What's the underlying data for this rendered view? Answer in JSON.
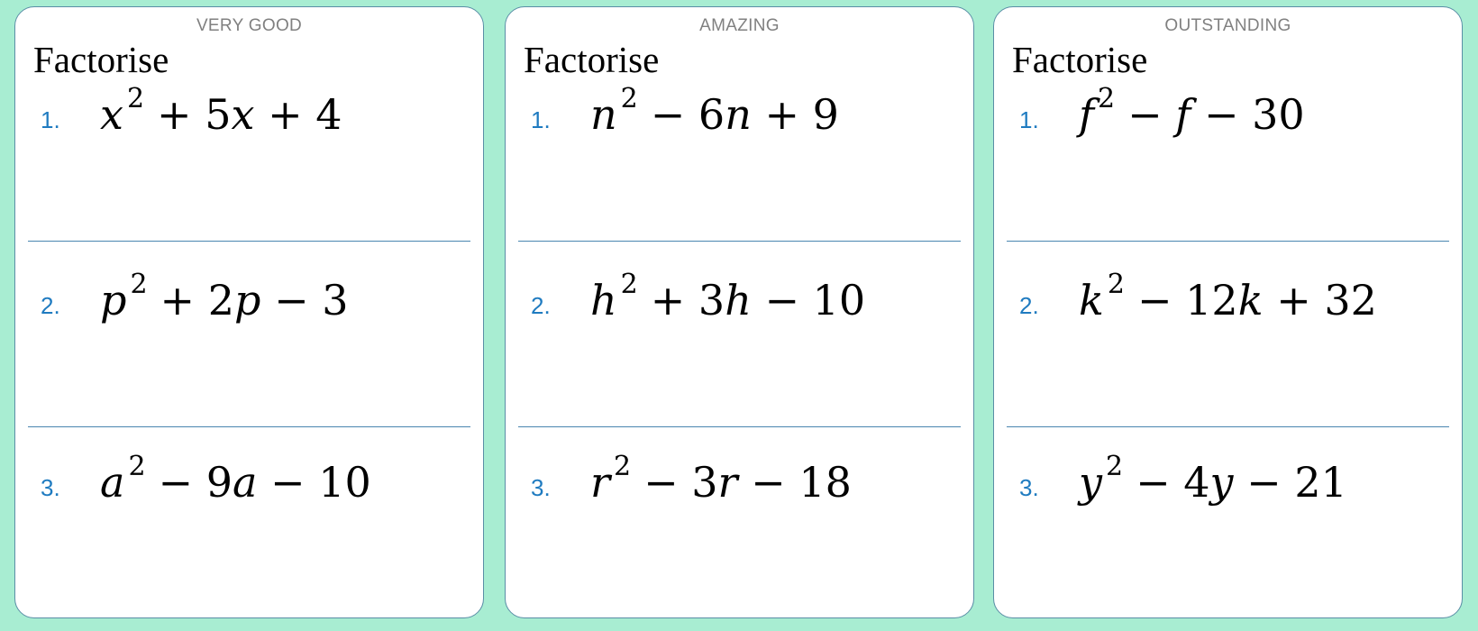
{
  "cards": [
    {
      "level": "VERY GOOD",
      "heading": "Factorise",
      "questions": [
        {
          "number": "1.",
          "base": "x",
          "power": "2",
          "rest": "+ 5x + 4"
        },
        {
          "number": "2.",
          "base": "p",
          "power": "2",
          "rest": "+ 2p − 3"
        },
        {
          "number": "3.",
          "base": "a",
          "power": "2",
          "rest": "− 9a − 10"
        }
      ]
    },
    {
      "level": "AMAZING",
      "heading": "Factorise",
      "questions": [
        {
          "number": "1.",
          "base": "n",
          "power": "2",
          "rest": "− 6n + 9"
        },
        {
          "number": "2.",
          "base": "h",
          "power": "2",
          "rest": "+ 3h − 10"
        },
        {
          "number": "3.",
          "base": "r",
          "power": "2",
          "rest": "− 3r − 18"
        }
      ]
    },
    {
      "level": "OUTSTANDING",
      "heading": "Factorise",
      "questions": [
        {
          "number": "1.",
          "base": "f",
          "power": "2",
          "rest": "− f − 30"
        },
        {
          "number": "2.",
          "base": "k",
          "power": "2",
          "rest": "− 12k + 32"
        },
        {
          "number": "3.",
          "base": "y",
          "power": "2",
          "rest": "− 4y − 21"
        }
      ]
    }
  ]
}
